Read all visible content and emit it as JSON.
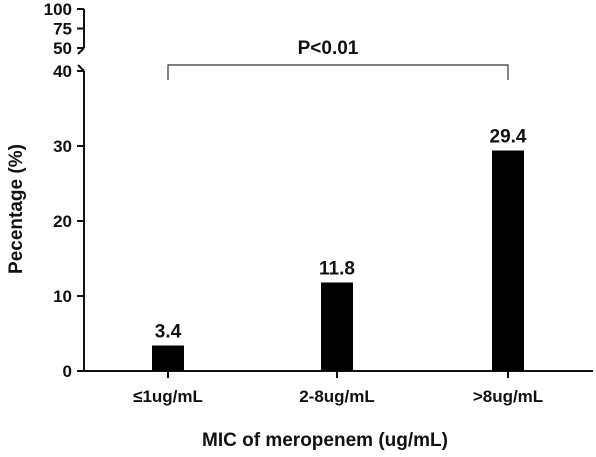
{
  "chart_data": {
    "type": "bar",
    "categories": [
      "≤1ug/mL",
      "2-8ug/mL",
      ">8ug/mL"
    ],
    "values": [
      3.4,
      11.8,
      29.4
    ],
    "data_labels": [
      "3.4",
      "11.8",
      "29.4"
    ],
    "title": "",
    "xlabel": "MIC of meropenem (ug/mL)",
    "ylabel": "Pecentage (%)",
    "ylim": [
      0,
      100
    ],
    "axis_break": {
      "lower_segment": [
        0,
        40
      ],
      "upper_segment": [
        50,
        100
      ]
    },
    "yticks_lower": [
      "0",
      "10",
      "20",
      "30",
      "40"
    ],
    "yticks_upper": [
      "50",
      "75",
      "100"
    ],
    "annotation": {
      "text": "P<0.01",
      "from_category": "≤1ug/mL",
      "to_category": ">8ug/mL"
    },
    "bar_color": "#000000",
    "grid": false,
    "legend": "none"
  }
}
